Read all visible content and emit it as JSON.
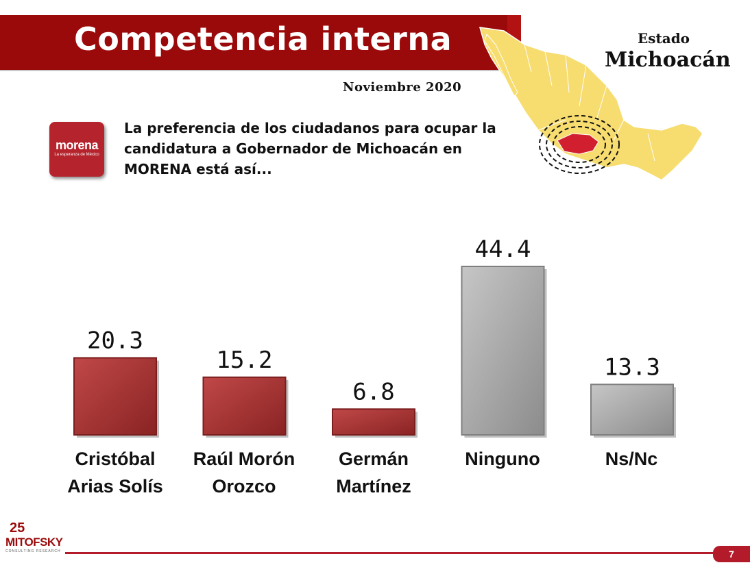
{
  "header": {
    "title": "Competencia interna",
    "date": "Noviembre 2020",
    "state_label": "Estado",
    "state_name": "Michoacán"
  },
  "logo": {
    "word": "morena",
    "tagline": "La esperanza de México"
  },
  "intro_text": "La preferencia de los ciudadanos para ocupar la candidatura a Gobernador de Michoacán en MORENA está así...",
  "colors": {
    "candidate_bar": "#a83232",
    "other_bar": "#a8a8a8",
    "title_band": "#9b0a0a"
  },
  "chart_data": {
    "type": "bar",
    "categories": [
      "Cristóbal\nArias Solís",
      "Raúl Morón\nOrozco",
      "Germán\nMartínez",
      "Ninguno",
      "Ns/Nc"
    ],
    "values": [
      20.3,
      15.2,
      6.8,
      44.4,
      13.3
    ],
    "value_labels": [
      "20.3",
      "15.2",
      "6.8",
      "44.4",
      "13.3"
    ],
    "bar_kind": [
      "candidate",
      "candidate",
      "candidate",
      "other",
      "other"
    ],
    "ylim": [
      0,
      50
    ],
    "grid": false,
    "legend": "none"
  },
  "footer": {
    "brand": "MITOFSKY",
    "brand_anniversary": "25",
    "brand_tagline": "CONSULTING RESEARCH",
    "page_number": "7"
  }
}
